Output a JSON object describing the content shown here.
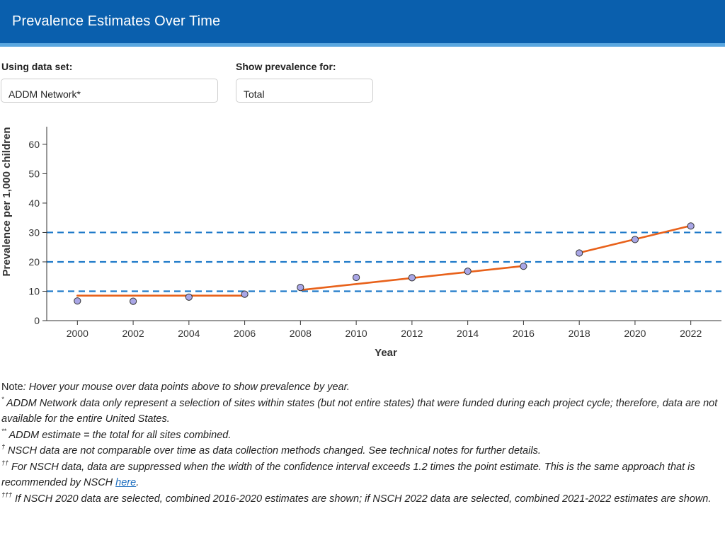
{
  "header": {
    "title": "Prevalence Estimates Over Time"
  },
  "controls": {
    "dataset_label": "Using data set:",
    "dataset_value": "ADDM Network*",
    "prevalence_label": "Show prevalence for:",
    "prevalence_value": "Total"
  },
  "colors": {
    "header_bg": "#0a5fad",
    "header_accent": "#5aa7e0",
    "trend_line": "#e8611a",
    "point_fill": "#a9a6e6",
    "reference_line": "#1f7ac9",
    "link": "#1f6fbf"
  },
  "chart_data": {
    "type": "scatter",
    "xlabel": "Year",
    "ylabel": "Prevalence per 1,000 children",
    "xlim": [
      1998.9,
      2023.1
    ],
    "ylim": [
      0,
      66
    ],
    "x_ticks": [
      2000,
      2002,
      2004,
      2006,
      2008,
      2010,
      2012,
      2014,
      2016,
      2018,
      2020,
      2022
    ],
    "y_ticks": [
      0,
      10,
      20,
      30,
      40,
      50,
      60
    ],
    "grid": false,
    "reference_lines": [
      10,
      20,
      30
    ],
    "points": [
      {
        "x": 2000,
        "y": 6.7
      },
      {
        "x": 2002,
        "y": 6.6
      },
      {
        "x": 2004,
        "y": 8.0
      },
      {
        "x": 2006,
        "y": 9.0
      },
      {
        "x": 2008,
        "y": 11.3
      },
      {
        "x": 2010,
        "y": 14.7
      },
      {
        "x": 2012,
        "y": 14.6
      },
      {
        "x": 2014,
        "y": 16.8
      },
      {
        "x": 2016,
        "y": 18.5
      },
      {
        "x": 2018,
        "y": 23.0
      },
      {
        "x": 2020,
        "y": 27.6
      },
      {
        "x": 2022,
        "y": 32.2
      }
    ],
    "trend_segments": [
      {
        "x": [
          2000,
          2006
        ],
        "y": [
          8.5,
          8.5
        ]
      },
      {
        "x": [
          2008,
          2016
        ],
        "y": [
          10.4,
          18.6
        ]
      },
      {
        "x": [
          2018,
          2022
        ],
        "y": [
          23.1,
          32.3
        ]
      }
    ]
  },
  "notes": {
    "note_label": "Note",
    "note_text": ": Hover your mouse over data points above to show prevalence by year.",
    "n1_mark": "*",
    "n1_text": " ADDM Network data only represent a selection of sites within states (but not entire states) that were funded during each project cycle; therefore, data are not available for the entire United States.",
    "n2_mark": "**",
    "n2_text": " ADDM estimate = the total for all sites combined.",
    "n3_mark": "†",
    "n3_text": " NSCH data are not comparable over time as data collection methods changed. See technical notes for further details.",
    "n4_mark": "††",
    "n4_text": " For NSCH data, data are suppressed when the width of the confidence interval exceeds 1.2 times the point estimate. This is the same approach that is recommended by NSCH ",
    "n4_link": "here",
    "n4_end": ".",
    "n5_mark": "†††",
    "n5_text": " If NSCH 2020 data are selected, combined 2016-2020 estimates are shown; if NSCH 2022 data are selected, combined 2021-2022 estimates are shown."
  }
}
